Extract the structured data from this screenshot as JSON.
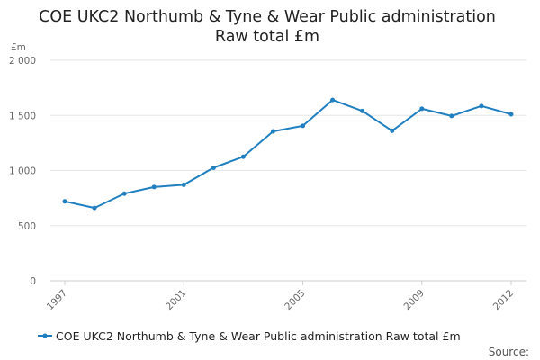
{
  "title_lines": [
    "COE UKC2 Northumb & Tyne & Wear Public administration",
    "Raw total £m"
  ],
  "unit_label": "£m",
  "source_label": "Source:",
  "colors": {
    "series": "#1f7fc1",
    "grid": "#e6e6e6",
    "axis": "#cccccc"
  },
  "chart_data": {
    "type": "line",
    "title": "COE UKC2 Northumb & Tyne & Wear Public administration Raw total £m",
    "ylabel": "£m",
    "xlabel": "",
    "ylim": [
      0,
      2000
    ],
    "y_ticks": [
      0,
      500,
      1000,
      1500,
      2000
    ],
    "y_tick_labels": [
      "0",
      "500",
      "1 000",
      "1 500",
      "2 000"
    ],
    "xlim": [
      1997,
      2012
    ],
    "x_ticks": [
      1997,
      2001,
      2005,
      2009,
      2012
    ],
    "x_tick_labels": [
      "1997",
      "2001",
      "2005",
      "2009",
      "2012"
    ],
    "grid": "horizontal",
    "legend_position": "bottom",
    "series": [
      {
        "name": "COE UKC2 Northumb & Tyne & Wear Public administration Raw total £m",
        "x": [
          1997,
          1998,
          1999,
          2000,
          2001,
          2002,
          2003,
          2004,
          2005,
          2006,
          2007,
          2008,
          2009,
          2010,
          2011,
          2012
        ],
        "values": [
          720,
          660,
          790,
          850,
          870,
          1025,
          1125,
          1355,
          1405,
          1640,
          1540,
          1360,
          1560,
          1495,
          1585,
          1510
        ]
      }
    ]
  }
}
